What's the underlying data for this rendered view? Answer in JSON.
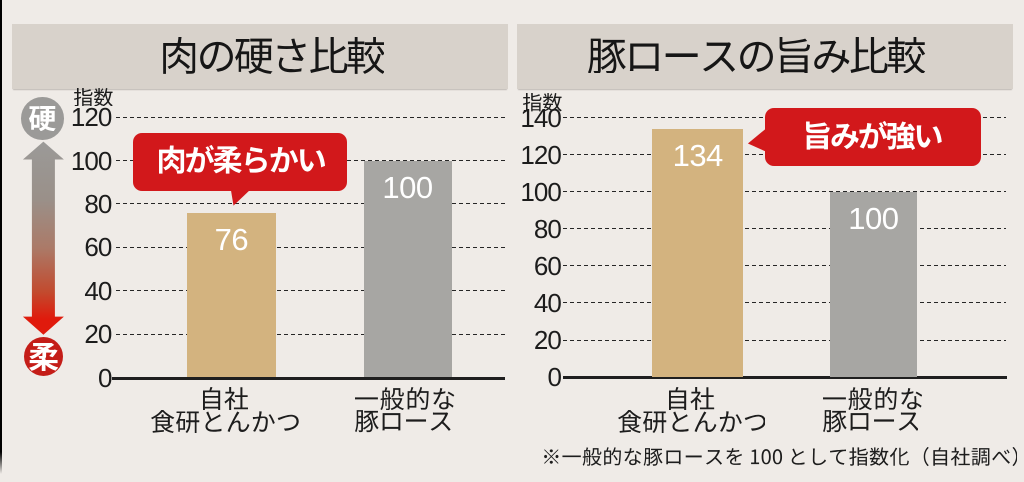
{
  "page": {
    "background": "#efebe7",
    "indicator": {
      "top_label": "硬",
      "bottom_label": "柔",
      "top_color": "#9b9a98",
      "bottom_color": "#c41d18"
    },
    "footnote": "※一般的な豚ロースを 100 として指数化（自社調べ）"
  },
  "chart_data": [
    {
      "type": "bar",
      "title": "肉の硬さ比較",
      "ylabel": "指数",
      "ylim": [
        0,
        120
      ],
      "ytick_step": 20,
      "yticks": [
        120,
        100,
        80,
        60,
        40,
        20,
        0
      ],
      "categories": [
        [
          "自社",
          "食研とんかつ"
        ],
        [
          "一般的な",
          "豚ロース"
        ]
      ],
      "values": [
        76,
        100
      ],
      "bar_colors": [
        "#d3b37f",
        "#a7a6a3"
      ],
      "value_label_color": "#ffffff",
      "grid": {
        "style": "dashed",
        "color": "#262626"
      },
      "annotation": {
        "text": "肉が柔らかい",
        "bg": "#d2181b",
        "color": "#ffffff"
      }
    },
    {
      "type": "bar",
      "title": "豚ロースの旨み比較",
      "ylabel": "指数",
      "ylim": [
        0,
        140
      ],
      "ytick_step": 20,
      "yticks": [
        140,
        120,
        100,
        80,
        60,
        40,
        20,
        0
      ],
      "categories": [
        [
          "自社",
          "食研とんかつ"
        ],
        [
          "一般的な",
          "豚ロース"
        ]
      ],
      "values": [
        134,
        100
      ],
      "bar_colors": [
        "#d3b37f",
        "#a7a6a3"
      ],
      "value_label_color": "#ffffff",
      "grid": {
        "style": "dashed",
        "color": "#262626"
      },
      "annotation": {
        "text": "旨みが強い",
        "bg": "#d2181b",
        "color": "#ffffff"
      }
    }
  ]
}
